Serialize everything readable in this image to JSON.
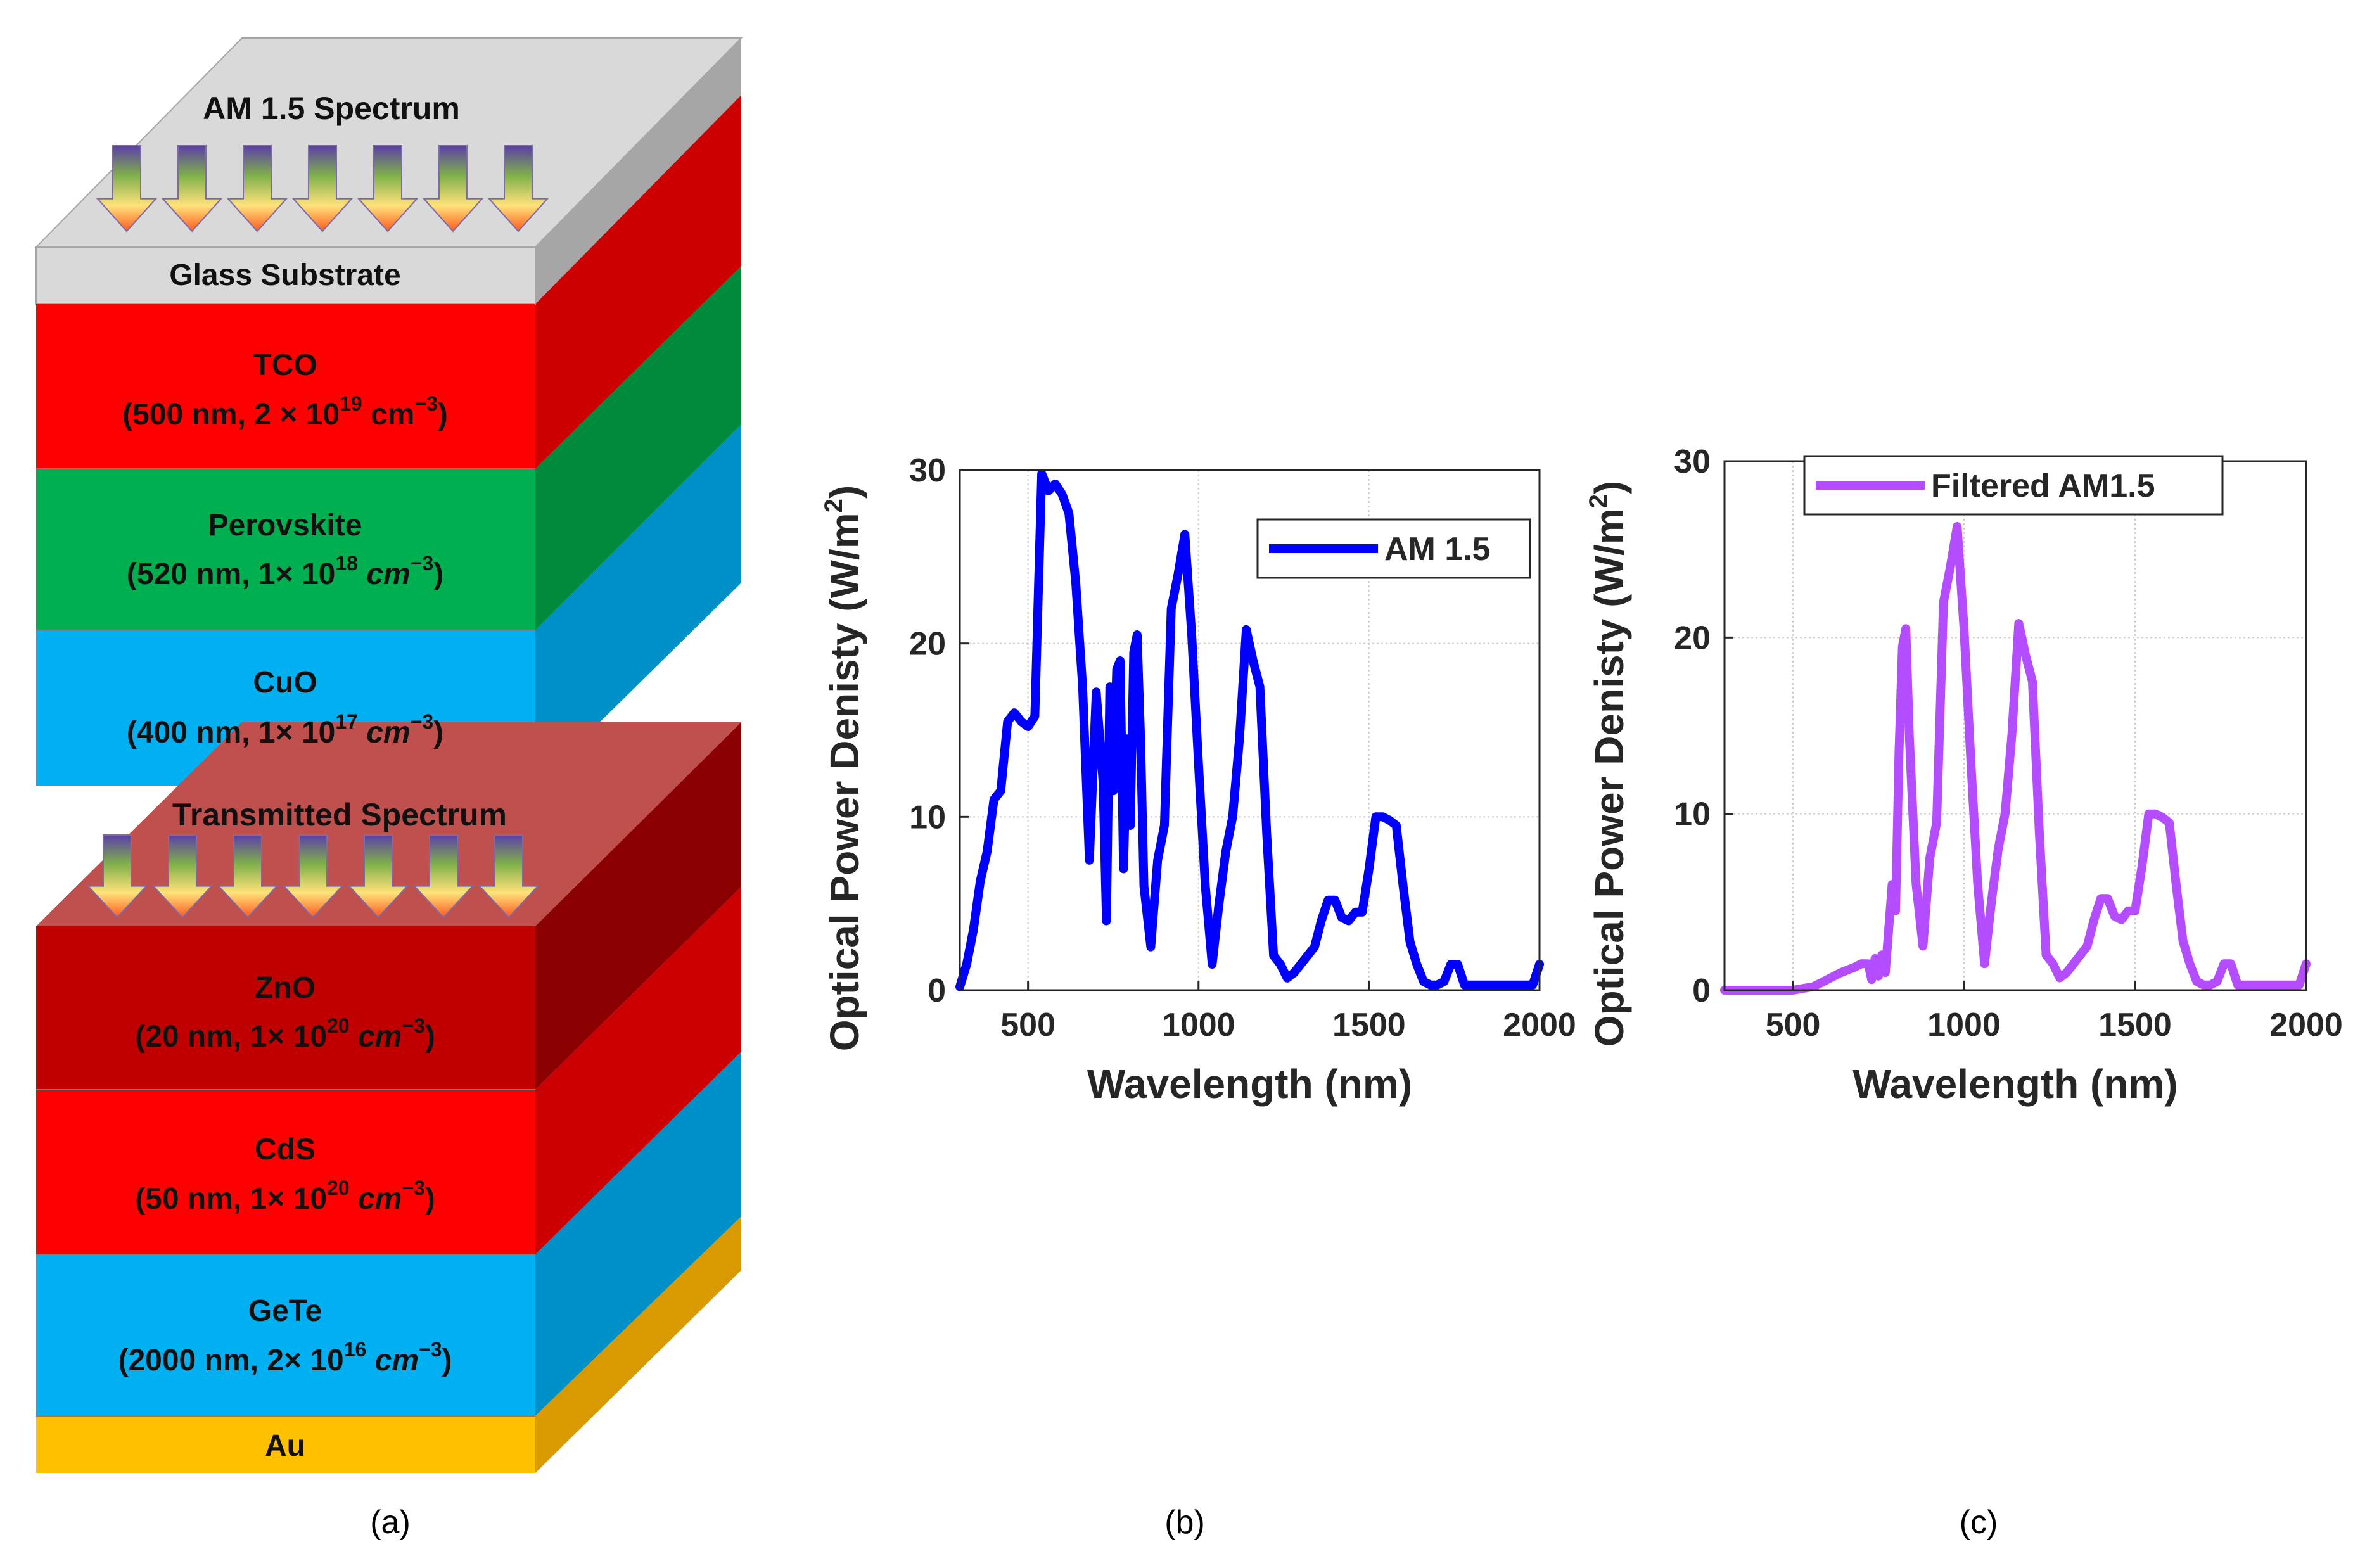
{
  "panel_a": {
    "caption": "(a)",
    "top_spectrum": "AM 1.5 Spectrum",
    "glass": "Glass Substrate",
    "transmitted": "Transmitted Spectrum",
    "au": "Au",
    "colors": {
      "glass": "#d9d9d9",
      "tco": "#ff0000",
      "perovskite": "#00b050",
      "cuo": "#00b0f0",
      "zno": "#c00000",
      "cds": "#ff0000",
      "gete": "#00b0f0",
      "au": "#ffc000",
      "transmitted": "#c0504d"
    },
    "layers": [
      {
        "name": "TCO",
        "detail_pre": "(500 nm, 2 × 10",
        "exp": "19",
        "unit": " cm",
        "unit_exp": "−3",
        "close": ")"
      },
      {
        "name": "Perovskite",
        "detail_pre": "(520 nm, 1× 10",
        "exp": "18",
        "unit": " cm",
        "unit_exp": "−3",
        "close": ")"
      },
      {
        "name": "CuO",
        "detail_pre": "(400 nm, 1× 10",
        "exp": "17",
        "unit": " cm",
        "unit_exp": "−3",
        "close": ")"
      },
      {
        "name": "ZnO",
        "detail_pre": "(20 nm, 1× 10",
        "exp": "20",
        "unit": " cm",
        "unit_exp": "−3",
        "close": ")"
      },
      {
        "name": "CdS",
        "detail_pre": "(50 nm, 1× 10",
        "exp": "20",
        "unit": " cm",
        "unit_exp": "−3",
        "close": ")"
      },
      {
        "name": "GeTe",
        "detail_pre": "(2000 nm, 2× 10",
        "exp": "16",
        "unit": " cm",
        "unit_exp": "−3",
        "close": ")"
      }
    ]
  },
  "chart_data": [
    {
      "type": "line",
      "caption": "(b)",
      "xlabel": "Wavelength (nm)",
      "ylabel": "Optical Power Denisty (W/m",
      "ylabel_sup": "2",
      "ylabel_close": ")",
      "xlim": [
        300,
        2000
      ],
      "ylim": [
        0,
        30
      ],
      "xticks": [
        500,
        1000,
        1500,
        2000
      ],
      "yticks": [
        0,
        10,
        20,
        30
      ],
      "grid": true,
      "legend_position": "top-right",
      "series": [
        {
          "name": "AM 1.5",
          "color": "#0000ff",
          "x": [
            300,
            320,
            340,
            360,
            380,
            400,
            420,
            440,
            460,
            480,
            500,
            520,
            540,
            560,
            580,
            600,
            620,
            640,
            660,
            680,
            700,
            720,
            730,
            740,
            750,
            760,
            770,
            780,
            790,
            800,
            810,
            820,
            830,
            840,
            860,
            880,
            900,
            920,
            940,
            960,
            980,
            1000,
            1020,
            1040,
            1060,
            1080,
            1100,
            1120,
            1140,
            1160,
            1180,
            1200,
            1220,
            1240,
            1260,
            1280,
            1300,
            1320,
            1340,
            1360,
            1380,
            1400,
            1420,
            1440,
            1460,
            1480,
            1500,
            1520,
            1540,
            1560,
            1580,
            1600,
            1620,
            1640,
            1660,
            1680,
            1700,
            1720,
            1740,
            1760,
            1780,
            1800,
            1820,
            1840,
            1860,
            1880,
            1900,
            1920,
            1940,
            1960,
            1980,
            2000
          ],
          "values": [
            0.2,
            1.5,
            3.5,
            6.3,
            8.0,
            11.0,
            11.5,
            15.5,
            16.0,
            15.5,
            15.2,
            15.8,
            29.8,
            28.8,
            29.2,
            28.6,
            27.5,
            23.5,
            17.5,
            7.5,
            17.2,
            12.0,
            4.0,
            17.5,
            11.5,
            18.5,
            19.0,
            7.0,
            14.5,
            9.5,
            19.5,
            20.5,
            14.5,
            6.0,
            2.5,
            7.5,
            9.5,
            22.0,
            24.0,
            26.3,
            20.5,
            13.0,
            6.0,
            1.5,
            5.0,
            8.0,
            10.0,
            14.5,
            20.8,
            19.0,
            17.5,
            9.0,
            2.0,
            1.5,
            0.7,
            1.0,
            1.5,
            2.0,
            2.5,
            4.0,
            5.2,
            5.2,
            4.2,
            4.0,
            4.5,
            4.5,
            7.0,
            10.0,
            10.0,
            9.8,
            9.5,
            6.0,
            2.8,
            1.5,
            0.5,
            0.3,
            0.3,
            0.5,
            1.5,
            1.5,
            0.3,
            0.3,
            0.3,
            0.3,
            0.3,
            0.3,
            0.3,
            0.3,
            0.3,
            0.3,
            0.3,
            1.5
          ]
        }
      ]
    },
    {
      "type": "line",
      "caption": "(c)",
      "xlabel": "Wavelength (nm)",
      "ylabel": "Optical Power Denisty (W/m",
      "ylabel_sup": "2",
      "ylabel_close": ")",
      "xlim": [
        300,
        2000
      ],
      "ylim": [
        0,
        30
      ],
      "xticks": [
        500,
        1000,
        1500,
        2000
      ],
      "yticks": [
        0,
        10,
        20,
        30
      ],
      "grid": true,
      "legend_position": "top-center",
      "series": [
        {
          "name": "Filtered AM1.5",
          "color": "#b44dff",
          "x": [
            300,
            400,
            500,
            560,
            600,
            640,
            680,
            700,
            720,
            730,
            740,
            750,
            760,
            770,
            780,
            790,
            800,
            810,
            820,
            830,
            840,
            860,
            880,
            900,
            920,
            940,
            960,
            980,
            1000,
            1020,
            1040,
            1060,
            1080,
            1100,
            1120,
            1140,
            1160,
            1180,
            1200,
            1220,
            1240,
            1260,
            1280,
            1300,
            1320,
            1340,
            1360,
            1380,
            1400,
            1420,
            1440,
            1460,
            1480,
            1500,
            1520,
            1540,
            1560,
            1580,
            1600,
            1620,
            1640,
            1660,
            1680,
            1700,
            1720,
            1740,
            1760,
            1780,
            1800,
            1820,
            1840,
            1860,
            1880,
            1900,
            1920,
            1940,
            1960,
            1980,
            2000
          ],
          "values": [
            0,
            0,
            0,
            0.2,
            0.6,
            1.0,
            1.3,
            1.5,
            1.5,
            0.6,
            1.8,
            0.8,
            2.0,
            1.0,
            3.5,
            6.0,
            4.5,
            13.5,
            19.5,
            20.5,
            14.5,
            6.0,
            2.5,
            7.5,
            9.5,
            22.0,
            24.0,
            26.3,
            20.5,
            13.0,
            6.0,
            1.5,
            5.0,
            8.0,
            10.0,
            14.5,
            20.8,
            19.0,
            17.5,
            9.0,
            2.0,
            1.5,
            0.7,
            1.0,
            1.5,
            2.0,
            2.5,
            4.0,
            5.2,
            5.2,
            4.2,
            4.0,
            4.5,
            4.5,
            7.0,
            10.0,
            10.0,
            9.8,
            9.5,
            6.0,
            2.8,
            1.5,
            0.5,
            0.3,
            0.3,
            0.5,
            1.5,
            1.5,
            0.3,
            0.3,
            0.3,
            0.3,
            0.3,
            0.3,
            0.3,
            0.3,
            0.3,
            0.3,
            1.5
          ]
        }
      ]
    }
  ]
}
